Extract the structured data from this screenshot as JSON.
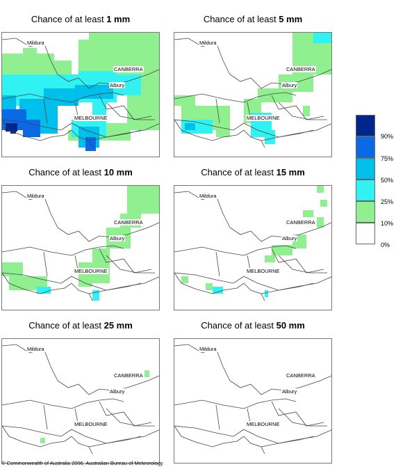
{
  "panels": [
    {
      "prefix": "Chance of at least ",
      "amount": "1 mm"
    },
    {
      "prefix": "Chance of at least ",
      "amount": "5 mm"
    },
    {
      "prefix": "Chance of at least ",
      "amount": "10 mm"
    },
    {
      "prefix": "Chance of at least ",
      "amount": "15 mm"
    },
    {
      "prefix": "Chance of at least ",
      "amount": "25 mm"
    },
    {
      "prefix": "Chance of at least ",
      "amount": "50 mm"
    }
  ],
  "places": {
    "mildura": "Mildura",
    "canberra": "CANBERRA",
    "albury": "Albury",
    "melbourne": "MELBOURNE"
  },
  "legend": {
    "labels": [
      "90%",
      "75%",
      "50%",
      "25%",
      "10%",
      "0%"
    ],
    "colors": [
      "#00268c",
      "#0a6ae6",
      "#00bfea",
      "#30f2f2",
      "#90f090",
      "#ffffff"
    ]
  },
  "copyright": "© Commonwealth of Australia 2006, Australian Bureau of Meteorology"
}
